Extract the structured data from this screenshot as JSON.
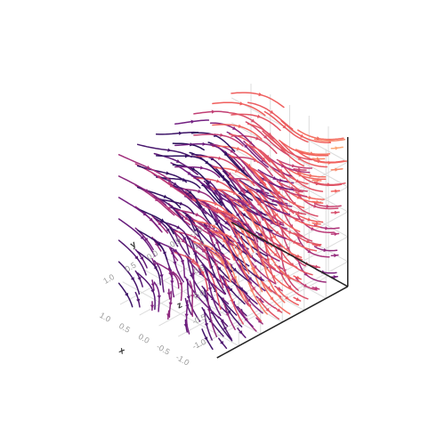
{
  "chart_data": {
    "type": "streamplot3d",
    "colormap": "magma",
    "colormap_stops": [
      "#000004",
      "#2c115f",
      "#721f81",
      "#b73779",
      "#f1605d",
      "#feb078"
    ],
    "axes": {
      "x": {
        "label": "x",
        "ticks": [
          -1.0,
          -0.5,
          0.0,
          0.5,
          1.0
        ],
        "tick_labels": [
          "-1.0",
          "-0.5",
          "0.0",
          "0.5",
          "1.0"
        ],
        "range": [
          -1.5,
          1.5
        ]
      },
      "y": {
        "label": "y",
        "ticks": [
          -1.0,
          -0.5,
          0.0,
          0.5,
          1.0
        ],
        "tick_labels": [
          "-1.0",
          "-0.5",
          "0.0",
          "0.5",
          "1.0"
        ],
        "range": [
          -1.5,
          1.5
        ]
      },
      "z": {
        "label": "z",
        "ticks": [
          -1.0,
          -0.5,
          0.0,
          0.5,
          1.0
        ],
        "tick_labels": [
          "-1.0",
          "-0.5",
          "0.0",
          "0.5",
          "1.0"
        ],
        "range": [
          -1.5,
          1.5
        ]
      }
    },
    "grid": true,
    "seed_grid": {
      "start": -1.3,
      "step": 0.43,
      "count": 7
    },
    "integration": {
      "steps": 22,
      "dt": 0.035
    }
  }
}
